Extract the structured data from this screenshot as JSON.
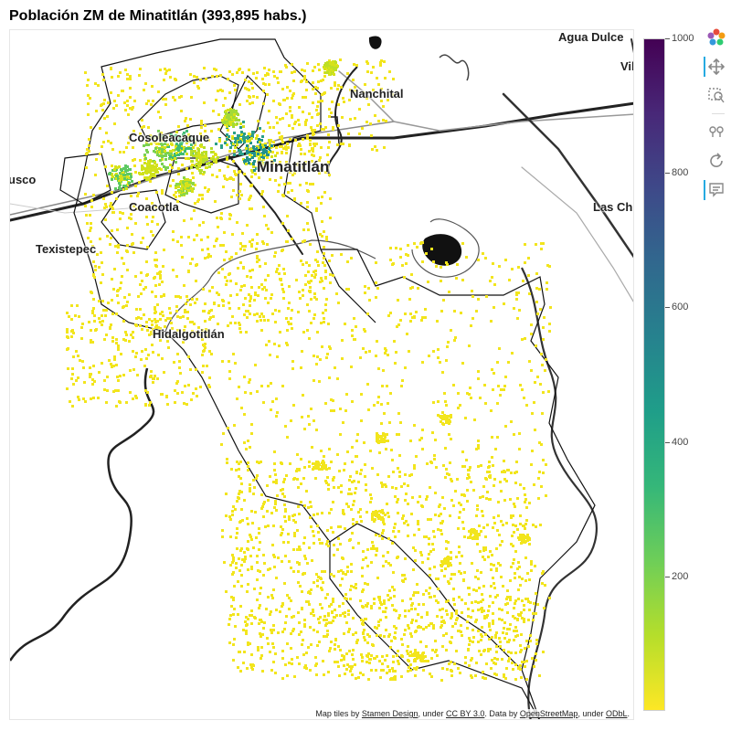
{
  "title": "Población ZM de Minatitlán (393,895 habs.)",
  "map": {
    "places": [
      {
        "name": "Agua Dulce"
      },
      {
        "name": "Vil"
      },
      {
        "name": "Nanchital"
      },
      {
        "name": "Cosoleacaque"
      },
      {
        "name": "Minatitlán"
      },
      {
        "name": "usco"
      },
      {
        "name": "Coacotla"
      },
      {
        "name": "Las Ch"
      },
      {
        "name": "Texistepec"
      },
      {
        "name": "Hidalgotitlán"
      }
    ],
    "attribution": {
      "prefix": "Map tiles by ",
      "stamen": "Stamen Design",
      "under1": ", under ",
      "ccby": "CC BY 3.0",
      "data_by": ". Data by ",
      "osm": "OpenStreetMap",
      "under2": ", under ",
      "odbl": "ODbL",
      "end": "."
    }
  },
  "colorbar": {
    "min": 0,
    "max": 1000,
    "ticks": [
      "1000",
      "800",
      "600",
      "400",
      "200"
    ],
    "colors": [
      "#fde725",
      "#b5de2b",
      "#6ece58",
      "#35b779",
      "#1f9e89",
      "#26828e",
      "#31688e",
      "#3e4989",
      "#482878",
      "#440154"
    ]
  },
  "toolbar": {
    "tools": [
      {
        "name": "bokeh-logo-icon",
        "active": false
      },
      {
        "name": "pan-tool-icon",
        "active": true
      },
      {
        "name": "box-zoom-tool-icon",
        "active": false
      },
      {
        "name": "wheel-zoom-tool-icon",
        "active": false
      },
      {
        "name": "reset-tool-icon",
        "active": false
      },
      {
        "name": "hover-tool-icon",
        "active": true
      }
    ]
  }
}
